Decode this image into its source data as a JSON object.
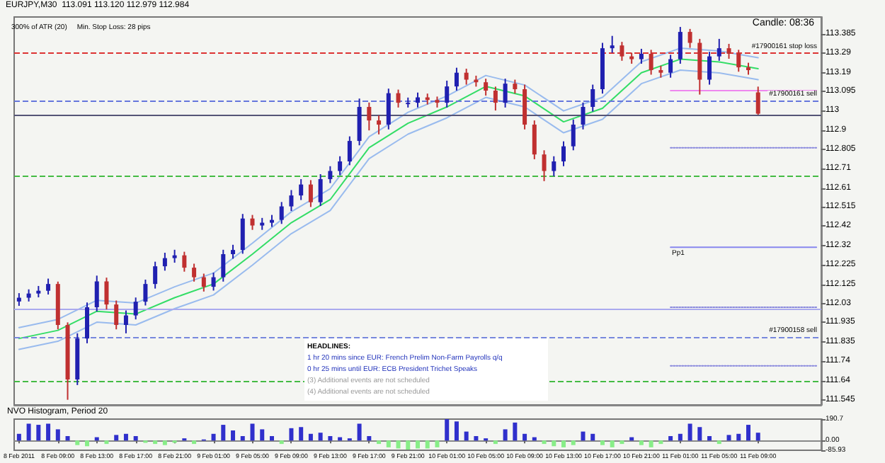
{
  "chart_data": [
    {
      "type": "candlestick",
      "title": "EURJPY,M30  113.091 113.120 112.979 112.984",
      "subtitle": "300% of ATR (20)     Min. Stop Loss: 28 pips",
      "annotations": [
        "Candle: 08:36",
        "HEADLINES:",
        "1 hr 20 mins since EUR: French Prelim Non-Farm Payrolls q/q",
        "0 hr 25 mins until EUR: ECB President Trichet Speaks",
        "(3) Additional events are not scheduled",
        "(4) Additional events are not scheduled",
        {
          "text": "Pp1",
          "y": 112.313
        }
      ],
      "categories": [
        "8 Feb 2011",
        null,
        null,
        null,
        "8 Feb 09:00",
        null,
        null,
        null,
        "8 Feb 13:00",
        null,
        null,
        null,
        "8 Feb 17:00",
        null,
        null,
        null,
        "8 Feb 21:00",
        null,
        null,
        null,
        "9 Feb 01:00",
        null,
        null,
        null,
        "9 Feb 05:00",
        null,
        null,
        null,
        "9 Feb 09:00",
        null,
        null,
        null,
        "9 Feb 13:00",
        null,
        null,
        null,
        "9 Feb 17:00",
        null,
        null,
        null,
        "9 Feb 21:00",
        null,
        null,
        null,
        "10 Feb 01:00",
        null,
        null,
        null,
        "10 Feb 05:00",
        null,
        null,
        null,
        "10 Feb 09:00",
        null,
        null,
        null,
        "10 Feb 13:00",
        null,
        null,
        null,
        "10 Feb 17:00",
        null,
        null,
        null,
        "10 Feb 21:00",
        null,
        null,
        null,
        "11 Feb 01:00",
        null,
        null,
        null,
        "11 Feb 05:00",
        null,
        null,
        null,
        "11 Feb 09:00",
        null,
        null,
        null,
        null,
        null,
        null
      ],
      "ohlc": [
        [
          112.04,
          112.082,
          112.018,
          112.059
        ],
        [
          112.059,
          112.101,
          112.04,
          112.08
        ],
        [
          112.08,
          112.118,
          112.061,
          112.094
        ],
        [
          112.094,
          112.155,
          112.075,
          112.128
        ],
        [
          112.128,
          112.14,
          111.9,
          111.922
        ],
        [
          111.922,
          111.935,
          111.546,
          111.648
        ],
        [
          111.648,
          111.88,
          111.62,
          111.854
        ],
        [
          111.854,
          112.035,
          111.83,
          112.011
        ],
        [
          112.011,
          112.17,
          111.99,
          112.141
        ],
        [
          112.141,
          112.16,
          112.0,
          112.025
        ],
        [
          112.025,
          112.045,
          111.9,
          111.922
        ],
        [
          111.922,
          111.995,
          111.88,
          111.97
        ],
        [
          111.97,
          112.06,
          111.95,
          112.039
        ],
        [
          112.039,
          112.15,
          112.02,
          112.128
        ],
        [
          112.128,
          112.24,
          112.105,
          112.217
        ],
        [
          112.217,
          112.285,
          112.195,
          112.258
        ],
        [
          112.258,
          112.3,
          112.235,
          112.272
        ],
        [
          112.272,
          112.29,
          112.19,
          112.21
        ],
        [
          112.21,
          112.23,
          112.14,
          112.162
        ],
        [
          112.162,
          112.18,
          112.09,
          112.114
        ],
        [
          112.114,
          112.185,
          112.095,
          112.162
        ],
        [
          112.162,
          112.3,
          112.14,
          112.278
        ],
        [
          112.278,
          112.325,
          112.255,
          112.299
        ],
        [
          112.299,
          112.48,
          112.28,
          112.457
        ],
        [
          112.457,
          112.475,
          112.4,
          112.422
        ],
        [
          112.422,
          112.46,
          112.4,
          112.436
        ],
        [
          112.436,
          112.475,
          112.415,
          112.45
        ],
        [
          112.45,
          112.54,
          112.43,
          112.518
        ],
        [
          112.518,
          112.6,
          112.495,
          112.573
        ],
        [
          112.573,
          112.655,
          112.55,
          112.628
        ],
        [
          112.628,
          112.65,
          112.515,
          112.539
        ],
        [
          112.539,
          112.68,
          112.52,
          112.655
        ],
        [
          112.655,
          112.72,
          112.635,
          112.696
        ],
        [
          112.696,
          112.77,
          112.675,
          112.744
        ],
        [
          112.744,
          112.87,
          112.725,
          112.847
        ],
        [
          112.847,
          113.06,
          112.825,
          113.018
        ],
        [
          113.018,
          113.04,
          112.9,
          112.95
        ],
        [
          112.95,
          112.975,
          112.88,
          112.929
        ],
        [
          112.929,
          113.11,
          112.905,
          113.087
        ],
        [
          113.087,
          113.105,
          113.015,
          113.039
        ],
        [
          113.039,
          113.065,
          113.015,
          113.039
        ],
        [
          113.039,
          113.09,
          113.015,
          113.066
        ],
        [
          113.066,
          113.085,
          113.03,
          113.053
        ],
        [
          113.053,
          113.07,
          113.015,
          113.039
        ],
        [
          113.039,
          113.15,
          113.015,
          113.121
        ],
        [
          113.121,
          113.215,
          113.1,
          113.19
        ],
        [
          113.19,
          113.21,
          113.13,
          113.155
        ],
        [
          113.155,
          113.175,
          113.12,
          113.142
        ],
        [
          113.142,
          113.16,
          113.075,
          113.1
        ],
        [
          113.1,
          113.12,
          113.0,
          113.039
        ],
        [
          113.039,
          113.16,
          113.015,
          113.135
        ],
        [
          113.135,
          113.155,
          113.085,
          113.107
        ],
        [
          113.107,
          113.13,
          112.905,
          112.929
        ],
        [
          112.929,
          112.95,
          112.755,
          112.779
        ],
        [
          112.779,
          112.8,
          112.645,
          112.696
        ],
        [
          112.696,
          112.77,
          112.67,
          112.744
        ],
        [
          112.744,
          112.845,
          112.72,
          112.82
        ],
        [
          112.82,
          112.955,
          112.8,
          112.929
        ],
        [
          112.929,
          113.04,
          112.905,
          113.018
        ],
        [
          113.018,
          113.13,
          112.995,
          113.107
        ],
        [
          113.107,
          113.34,
          113.085,
          113.313
        ],
        [
          113.313,
          113.375,
          113.29,
          113.327
        ],
        [
          113.327,
          113.345,
          113.25,
          113.272
        ],
        [
          113.272,
          113.29,
          113.235,
          113.258
        ],
        [
          113.258,
          113.31,
          113.235,
          113.285
        ],
        [
          113.285,
          113.305,
          113.18,
          113.203
        ],
        [
          113.203,
          113.225,
          113.165,
          113.19
        ],
        [
          113.19,
          113.28,
          113.165,
          113.258
        ],
        [
          113.258,
          113.42,
          113.235,
          113.395
        ],
        [
          113.395,
          113.41,
          113.315,
          113.34
        ],
        [
          113.34,
          113.36,
          113.08,
          113.155
        ],
        [
          113.155,
          113.295,
          113.13,
          113.272
        ],
        [
          113.272,
          113.36,
          113.25,
          113.313
        ],
        [
          113.313,
          113.335,
          113.26,
          113.285
        ],
        [
          113.285,
          113.305,
          113.195,
          113.217
        ],
        [
          113.217,
          113.24,
          113.18,
          113.203
        ],
        [
          113.091,
          113.12,
          112.979,
          112.984
        ],
        null,
        null,
        null,
        null,
        null,
        null
      ],
      "colors": [
        "#2020b0",
        "#2020b0",
        "#2020b0",
        "#2020b0",
        "#c03030",
        "#c03030",
        "#2020b0",
        "#2020b0",
        "#2020b0",
        "#c03030",
        "#c03030",
        "#2020b0",
        "#2020b0",
        "#2020b0",
        "#2020b0",
        "#2020b0",
        "#2020b0",
        "#c03030",
        "#c03030",
        "#c03030",
        "#2020b0",
        "#2020b0",
        "#2020b0",
        "#2020b0",
        "#c03030",
        "#2020b0",
        "#2020b0",
        "#2020b0",
        "#2020b0",
        "#2020b0",
        "#c03030",
        "#2020b0",
        "#2020b0",
        "#2020b0",
        "#2020b0",
        "#2020b0",
        "#c03030",
        "#c03030",
        "#2020b0",
        "#c03030",
        "#2020b0",
        "#2020b0",
        "#c03030",
        "#c03030",
        "#2020b0",
        "#2020b0",
        "#c03030",
        "#c03030",
        "#c03030",
        "#c03030",
        "#2020b0",
        "#c03030",
        "#c03030",
        "#c03030",
        "#c03030",
        "#2020b0",
        "#2020b0",
        "#2020b0",
        "#2020b0",
        "#2020b0",
        "#2020b0",
        "#2020b0",
        "#c03030",
        "#c03030",
        "#2020b0",
        "#c03030",
        "#c03030",
        "#2020b0",
        "#2020b0",
        "#c03030",
        "#c03030",
        "#2020b0",
        "#2020b0",
        "#c03030",
        "#c03030",
        "#c03030",
        "#c03030",
        null,
        null,
        null,
        null,
        null,
        null
      ],
      "series": [
        {
          "type": "line",
          "color": "#33dd66",
          "x": [
            "8 Feb 2011",
            "8 Feb 09:00",
            "8 Feb 13:00",
            "8 Feb 17:00",
            "8 Feb 21:00",
            "9 Feb 01:00",
            "9 Feb 05:00",
            "9 Feb 09:00",
            "9 Feb 13:00",
            "9 Feb 17:00",
            "9 Feb 21:00",
            "10 Feb 01:00",
            "10 Feb 05:00",
            "10 Feb 09:00",
            "10 Feb 13:00",
            "10 Feb 17:00",
            "10 Feb 21:00",
            "11 Feb 01:00",
            "11 Feb 05:00",
            "11 Feb 09:00"
          ],
          "values": [
            111.854,
            111.895,
            111.991,
            111.977,
            112.059,
            112.128,
            112.278,
            112.436,
            112.552,
            112.813,
            112.936,
            113.018,
            113.121,
            113.073,
            112.943,
            113.011,
            113.19,
            113.258,
            113.244,
            113.21
          ]
        },
        {
          "type": "line",
          "color": "#99bbee",
          "x": [
            "8 Feb 2011",
            "8 Feb 09:00",
            "8 Feb 13:00",
            "8 Feb 17:00",
            "8 Feb 21:00",
            "9 Feb 01:00",
            "9 Feb 05:00",
            "9 Feb 09:00",
            "9 Feb 13:00",
            "9 Feb 17:00",
            "9 Feb 21:00",
            "10 Feb 01:00",
            "10 Feb 05:00",
            "10 Feb 09:00",
            "10 Feb 13:00",
            "10 Feb 17:00",
            "10 Feb 21:00",
            "11 Feb 01:00",
            "11 Feb 05:00",
            "11 Feb 09:00"
          ],
          "values": [
            111.909,
            111.95,
            112.046,
            112.032,
            112.114,
            112.183,
            112.333,
            112.491,
            112.607,
            112.868,
            112.991,
            113.073,
            113.176,
            113.128,
            112.998,
            113.066,
            113.245,
            113.313,
            113.299,
            113.265
          ]
        },
        {
          "type": "line",
          "color": "#99bbee",
          "x": [
            "8 Feb 2011",
            "8 Feb 09:00",
            "8 Feb 13:00",
            "8 Feb 17:00",
            "8 Feb 21:00",
            "9 Feb 01:00",
            "9 Feb 05:00",
            "9 Feb 09:00",
            "9 Feb 13:00",
            "9 Feb 17:00",
            "9 Feb 21:00",
            "10 Feb 01:00",
            "10 Feb 05:00",
            "10 Feb 09:00",
            "10 Feb 13:00",
            "10 Feb 17:00",
            "10 Feb 21:00",
            "11 Feb 01:00",
            "11 Feb 05:00",
            "11 Feb 09:00"
          ],
          "values": [
            111.799,
            111.84,
            111.936,
            111.922,
            112.004,
            112.073,
            112.223,
            112.381,
            112.497,
            112.758,
            112.881,
            112.963,
            113.066,
            113.018,
            112.888,
            112.956,
            113.135,
            113.203,
            113.189,
            113.155
          ]
        },
        {
          "type": "line",
          "color": "#ee88ee",
          "line_style": "solid",
          "values": [
            null,
            null,
            null,
            null,
            null,
            null,
            null,
            null,
            null,
            null,
            null,
            null,
            null,
            null,
            null,
            null,
            null,
            null,
            null,
            null,
            null,
            null,
            null,
            null,
            null,
            null,
            null,
            null,
            null,
            null,
            null,
            null,
            null,
            null,
            null,
            null,
            null,
            null,
            null,
            null,
            null,
            null,
            null,
            null,
            null,
            null,
            null,
            null,
            null,
            null,
            null,
            null,
            null,
            null,
            null,
            null,
            null,
            null,
            null,
            null,
            null,
            null,
            null,
            null,
            null,
            null,
            null,
            113.1,
            113.1,
            113.1,
            113.1,
            113.1,
            113.1,
            113.1,
            113.1,
            113.1,
            113.1,
            113.1,
            113.1,
            113.1,
            113.1,
            113.1,
            113.1
          ]
        },
        {
          "type": "line",
          "color": "#8888dd",
          "line_style": "dotted",
          "values": [
            null,
            null,
            null,
            null,
            null,
            null,
            null,
            null,
            null,
            null,
            null,
            null,
            null,
            null,
            null,
            null,
            null,
            null,
            null,
            null,
            null,
            null,
            null,
            null,
            null,
            null,
            null,
            null,
            null,
            null,
            null,
            null,
            null,
            null,
            null,
            null,
            null,
            null,
            null,
            null,
            null,
            null,
            null,
            null,
            null,
            null,
            null,
            null,
            null,
            null,
            null,
            null,
            null,
            null,
            null,
            null,
            null,
            null,
            null,
            null,
            null,
            null,
            null,
            null,
            null,
            null,
            null,
            112.813,
            112.813,
            112.813,
            112.813,
            112.813,
            112.813,
            112.813,
            112.813,
            112.813,
            112.813,
            112.813,
            112.813,
            112.813,
            112.813,
            112.813,
            112.813
          ]
        },
        {
          "type": "line",
          "color": "#8888ee",
          "line_style": "solid",
          "values": [
            null,
            null,
            null,
            null,
            null,
            null,
            null,
            null,
            null,
            null,
            null,
            null,
            null,
            null,
            null,
            null,
            null,
            null,
            null,
            null,
            null,
            null,
            null,
            null,
            null,
            null,
            null,
            null,
            null,
            null,
            null,
            null,
            null,
            null,
            null,
            null,
            null,
            null,
            null,
            null,
            null,
            null,
            null,
            null,
            null,
            null,
            null,
            null,
            null,
            null,
            null,
            null,
            null,
            null,
            null,
            null,
            null,
            null,
            null,
            null,
            null,
            null,
            null,
            null,
            null,
            null,
            null,
            112.313,
            112.313,
            112.313,
            112.313,
            112.313,
            112.313,
            112.313,
            112.313,
            112.313,
            112.313,
            112.313,
            112.313,
            112.313,
            112.313,
            112.313,
            112.313
          ]
        },
        {
          "type": "line",
          "color": "#8888dd",
          "line_style": "dotted",
          "values": [
            null,
            null,
            null,
            null,
            null,
            null,
            null,
            null,
            null,
            null,
            null,
            null,
            null,
            null,
            null,
            null,
            null,
            null,
            null,
            null,
            null,
            null,
            null,
            null,
            null,
            null,
            null,
            null,
            null,
            null,
            null,
            null,
            null,
            null,
            null,
            null,
            null,
            null,
            null,
            null,
            null,
            null,
            null,
            null,
            null,
            null,
            null,
            null,
            null,
            null,
            null,
            null,
            null,
            null,
            null,
            null,
            null,
            null,
            null,
            null,
            null,
            null,
            null,
            null,
            null,
            null,
            null,
            112.011,
            112.011,
            112.011,
            112.011,
            112.011,
            112.011,
            112.011,
            112.011,
            112.011,
            112.011,
            112.011,
            112.011,
            112.011,
            112.011,
            112.011,
            112.011
          ]
        },
        {
          "type": "line",
          "color": "#8888dd",
          "line_style": "dotted",
          "values": [
            null,
            null,
            null,
            null,
            null,
            null,
            null,
            null,
            null,
            null,
            null,
            null,
            null,
            null,
            null,
            null,
            null,
            null,
            null,
            null,
            null,
            null,
            null,
            null,
            null,
            null,
            null,
            null,
            null,
            null,
            null,
            null,
            null,
            null,
            null,
            null,
            null,
            null,
            null,
            null,
            null,
            null,
            null,
            null,
            null,
            null,
            null,
            null,
            null,
            null,
            null,
            null,
            null,
            null,
            null,
            null,
            null,
            null,
            null,
            null,
            null,
            null,
            null,
            null,
            null,
            null,
            null,
            111.717,
            111.717,
            111.717,
            111.717,
            111.717,
            111.717,
            111.717,
            111.717,
            111.717,
            111.717,
            111.717,
            111.717,
            111.717,
            111.717,
            111.717,
            111.717
          ]
        }
      ],
      "ref_lines": [
        {
          "axis": "y",
          "value": 113.292,
          "label": "#17900161 stop loss",
          "color": "#dd3333",
          "line_style": "dashed"
        },
        {
          "axis": "y",
          "value": 113.053,
          "label": "#17900161 sell",
          "color": "#6677dd",
          "line_style": "dashed"
        },
        {
          "axis": "y",
          "value": 112.984,
          "color": "#555577",
          "line_style": "solid"
        },
        {
          "axis": "y",
          "value": 112.669,
          "color": "#44bb44",
          "line_style": "dashed"
        },
        {
          "axis": "y",
          "value": 112.004,
          "color": "#aaaaee",
          "line_style": "solid"
        },
        {
          "axis": "y",
          "value": 111.861,
          "label": "#17900158 sell",
          "color": "#7788dd",
          "line_style": "dashed"
        },
        {
          "axis": "y",
          "value": 111.635,
          "color": "#44bb44",
          "line_style": "dashed"
        }
      ],
      "ylim": [
        111.52,
        113.47
      ],
      "yticks": [
        111.545,
        111.64,
        111.74,
        111.835,
        111.935,
        112.03,
        112.125,
        112.225,
        112.32,
        112.42,
        112.515,
        112.61,
        112.71,
        112.805,
        112.9,
        113.0,
        113.095,
        113.19,
        113.29,
        113.385
      ],
      "tick_labels": "y"
    },
    {
      "type": "bar",
      "title": "NVO Histogram, Period 20",
      "categories": [
        "8 Feb 2011",
        null,
        null,
        null,
        "8 Feb 09:00",
        null,
        null,
        null,
        "8 Feb 13:00",
        null,
        null,
        null,
        "8 Feb 17:00",
        null,
        null,
        null,
        "8 Feb 21:00",
        null,
        null,
        null,
        "9 Feb 01:00",
        null,
        null,
        null,
        "9 Feb 05:00",
        null,
        null,
        null,
        "9 Feb 09:00",
        null,
        null,
        null,
        "9 Feb 13:00",
        null,
        null,
        null,
        "9 Feb 17:00",
        null,
        null,
        null,
        "9 Feb 21:00",
        null,
        null,
        null,
        "10 Feb 01:00",
        null,
        null,
        null,
        "10 Feb 05:00",
        null,
        null,
        null,
        "10 Feb 09:00",
        null,
        null,
        null,
        "10 Feb 13:00",
        null,
        null,
        null,
        "10 Feb 17:00",
        null,
        null,
        null,
        "10 Feb 21:00",
        null,
        null,
        null,
        "11 Feb 01:00",
        null,
        null,
        null,
        "11 Feb 05:00",
        null,
        null,
        null,
        "11 Feb 09:00",
        null,
        null,
        null,
        null,
        null,
        null
      ],
      "series": [
        {
          "color": "#3030cc",
          "values": [
            60,
            150,
            140,
            150,
            100,
            40,
            null,
            null,
            30,
            null,
            50,
            60,
            40,
            null,
            null,
            null,
            null,
            20,
            null,
            10,
            60,
            140,
            90,
            40,
            150,
            100,
            40,
            null,
            110,
            120,
            60,
            70,
            40,
            30,
            20,
            150,
            40,
            null,
            null,
            null,
            null,
            null,
            null,
            null,
            190,
            170,
            80,
            40,
            20,
            null,
            100,
            160,
            60,
            30,
            null,
            null,
            null,
            null,
            80,
            60,
            null,
            null,
            null,
            30,
            null,
            null,
            null,
            40,
            60,
            150,
            120,
            40,
            null,
            50,
            60,
            140,
            70,
            null,
            null,
            null,
            null,
            null,
            null
          ]
        },
        {
          "color": "#88ee88",
          "values": [
            null,
            null,
            null,
            null,
            null,
            null,
            -40,
            -50,
            null,
            -30,
            null,
            null,
            null,
            -20,
            -30,
            -40,
            -20,
            null,
            -30,
            null,
            null,
            null,
            null,
            null,
            null,
            null,
            null,
            -30,
            null,
            null,
            null,
            null,
            null,
            null,
            null,
            null,
            null,
            -30,
            -60,
            -70,
            -80,
            -70,
            -70,
            -60,
            null,
            null,
            null,
            null,
            null,
            -30,
            null,
            null,
            null,
            null,
            -30,
            -50,
            -60,
            -40,
            null,
            null,
            -40,
            -60,
            -30,
            null,
            -40,
            -60,
            -30,
            null,
            null,
            null,
            null,
            null,
            -30,
            null,
            null,
            null,
            null,
            null,
            null,
            null,
            null,
            null,
            null
          ]
        }
      ],
      "ylim": [
        -85.93,
        190.7
      ],
      "yticks": [
        {
          "value": 190.7,
          "label": "190.7"
        },
        {
          "value": 0,
          "label": "0.00"
        },
        {
          "value": -85.93,
          "label": "-85.93"
        }
      ]
    }
  ]
}
